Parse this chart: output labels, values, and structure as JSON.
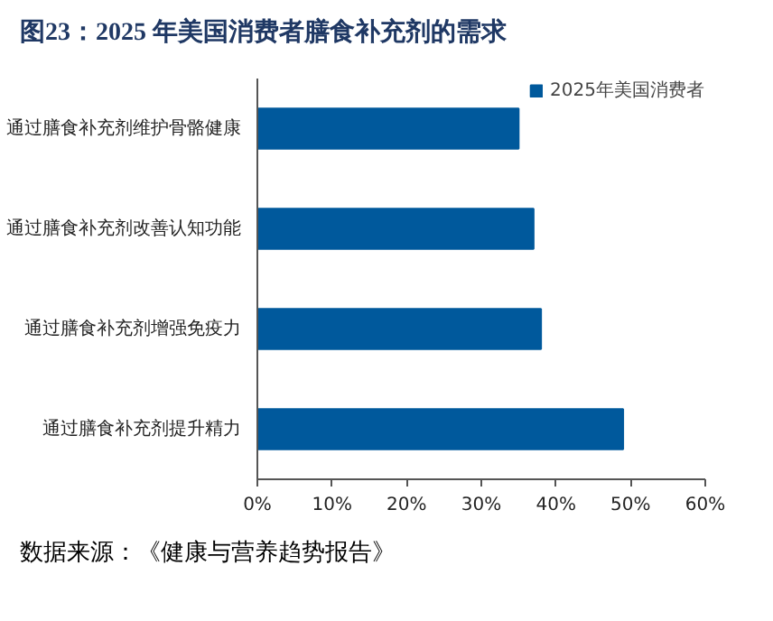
{
  "chart_data": {
    "type": "bar",
    "orientation": "horizontal",
    "title": "图23：2025 年美国消费者膳食补充剂的需求",
    "categories": [
      "通过膳食补充剂维护骨骼健康",
      "通过膳食补充剂改善认知功能",
      "通过膳食补充剂增强免疫力",
      "通过膳食补充剂提升精力"
    ],
    "series": [
      {
        "name": "2025年美国消费者",
        "color": "#00599c",
        "values": [
          35,
          37,
          38,
          49
        ]
      }
    ],
    "xlim": [
      0,
      60
    ],
    "xticks": [
      {
        "value": 0,
        "label": "0%"
      },
      {
        "value": 10,
        "label": "10%"
      },
      {
        "value": 20,
        "label": "20%"
      },
      {
        "value": 30,
        "label": "30%"
      },
      {
        "value": 40,
        "label": "40%"
      },
      {
        "value": 50,
        "label": "50%"
      },
      {
        "value": 60,
        "label": "60%"
      }
    ],
    "grid": false,
    "legend": "top right",
    "annotations": [
      "数据来源：《健康与营养趋势报告》"
    ]
  }
}
